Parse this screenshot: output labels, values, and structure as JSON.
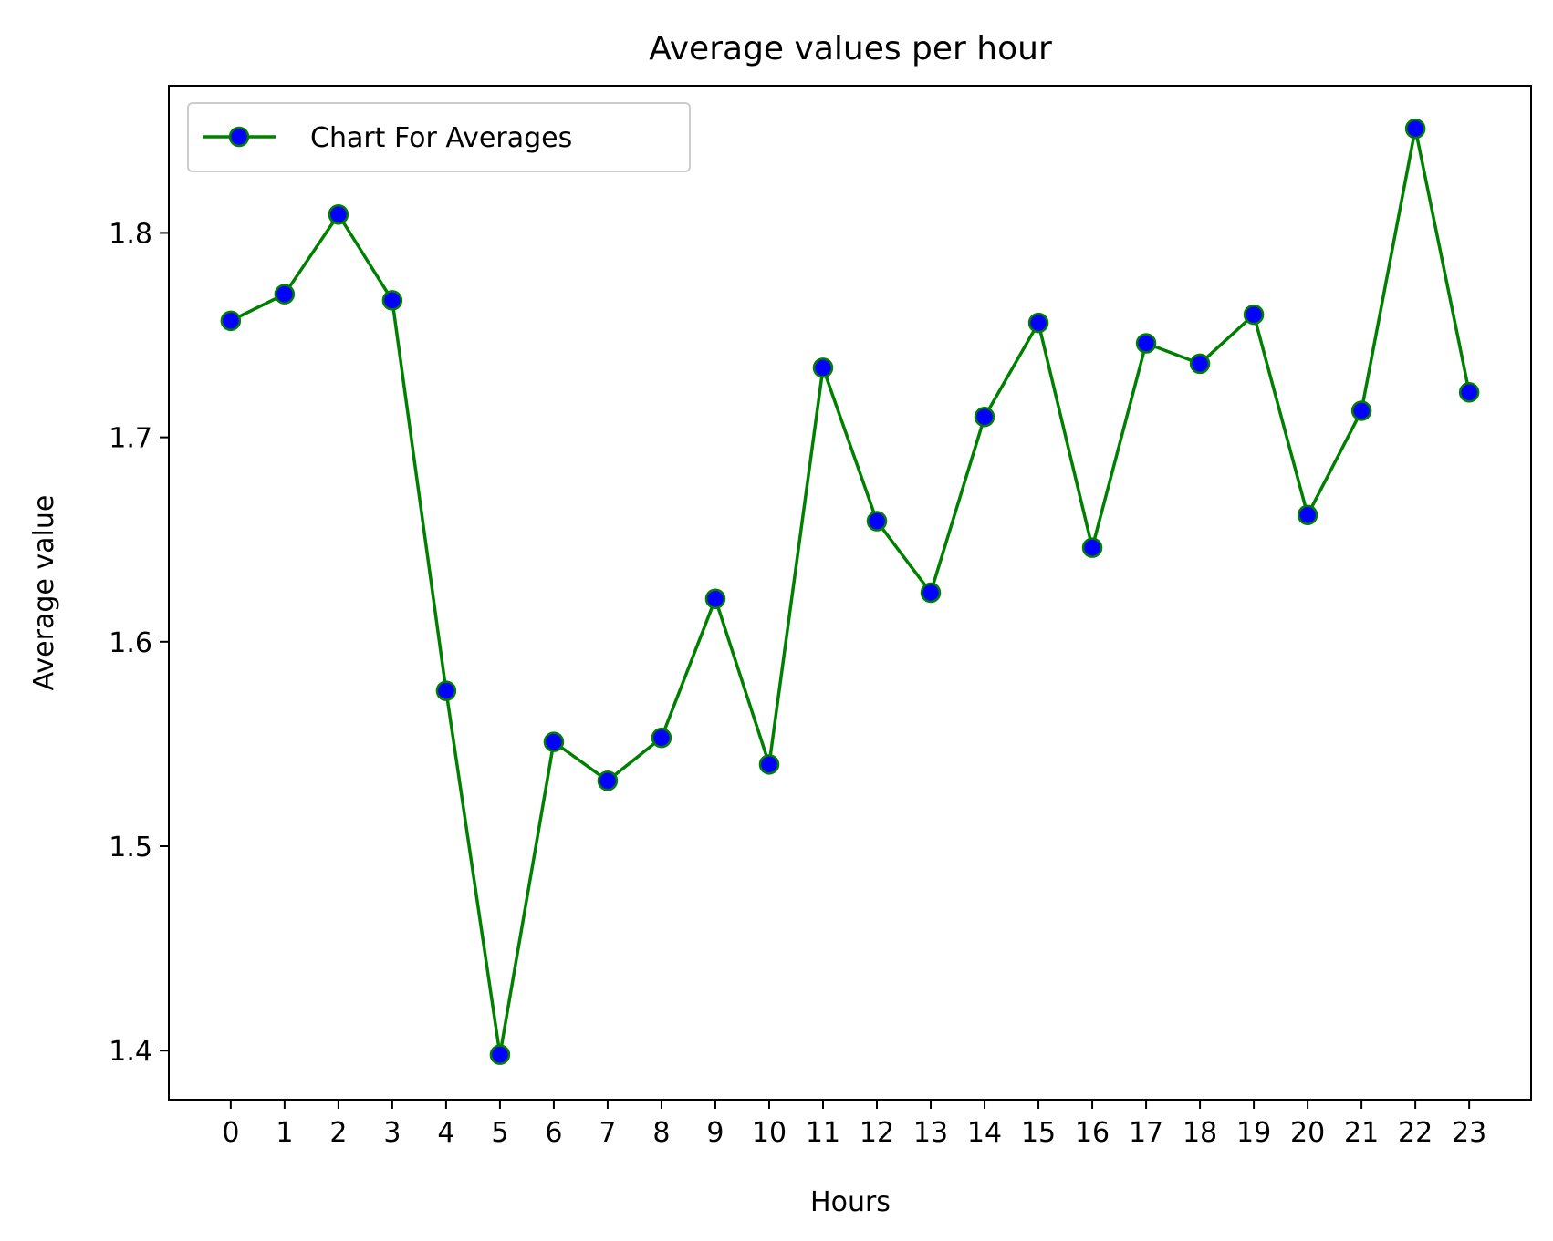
{
  "chart_data": {
    "type": "line",
    "title": "Average values per hour",
    "xlabel": "Hours",
    "ylabel": "Average value",
    "x": [
      0,
      1,
      2,
      3,
      4,
      5,
      6,
      7,
      8,
      9,
      10,
      11,
      12,
      13,
      14,
      15,
      16,
      17,
      18,
      19,
      20,
      21,
      22,
      23
    ],
    "x_ticks": [
      "0",
      "1",
      "2",
      "3",
      "4",
      "5",
      "6",
      "7",
      "8",
      "9",
      "10",
      "11",
      "12",
      "13",
      "14",
      "15",
      "16",
      "17",
      "18",
      "19",
      "20",
      "21",
      "22",
      "23"
    ],
    "xlim": [
      -1.15,
      24.15
    ],
    "ylim": [
      1.376,
      1.872
    ],
    "y_ticks": [
      "1.4",
      "1.5",
      "1.6",
      "1.7",
      "1.8"
    ],
    "grid": false,
    "legend_position": "top-left",
    "series": [
      {
        "name": "Chart For Averages",
        "line_color": "#008000",
        "marker_color": "#0000ff",
        "marker_edge_color": "#008000",
        "values": [
          1.757,
          1.77,
          1.809,
          1.767,
          1.576,
          1.398,
          1.551,
          1.532,
          1.553,
          1.621,
          1.54,
          1.734,
          1.659,
          1.624,
          1.71,
          1.756,
          1.646,
          1.746,
          1.736,
          1.76,
          1.662,
          1.713,
          1.851,
          1.722
        ]
      }
    ]
  }
}
